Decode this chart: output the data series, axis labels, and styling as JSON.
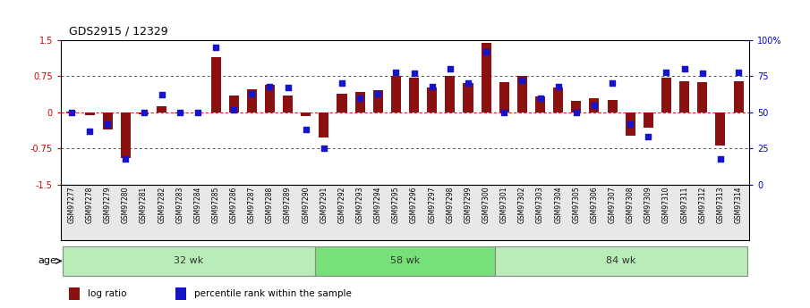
{
  "title": "GDS2915 / 12329",
  "samples": [
    "GSM97277",
    "GSM97278",
    "GSM97279",
    "GSM97280",
    "GSM97281",
    "GSM97282",
    "GSM97283",
    "GSM97284",
    "GSM97285",
    "GSM97286",
    "GSM97287",
    "GSM97288",
    "GSM97289",
    "GSM97290",
    "GSM97291",
    "GSM97292",
    "GSM97293",
    "GSM97294",
    "GSM97295",
    "GSM97296",
    "GSM97297",
    "GSM97298",
    "GSM97299",
    "GSM97300",
    "GSM97301",
    "GSM97302",
    "GSM97303",
    "GSM97304",
    "GSM97305",
    "GSM97306",
    "GSM97307",
    "GSM97308",
    "GSM97309",
    "GSM97310",
    "GSM97311",
    "GSM97312",
    "GSM97313",
    "GSM97314"
  ],
  "log_ratio": [
    0.02,
    -0.05,
    -0.35,
    -0.95,
    -0.04,
    0.13,
    -0.02,
    0.0,
    1.15,
    0.35,
    0.48,
    0.58,
    0.35,
    -0.08,
    -0.52,
    0.38,
    0.42,
    0.47,
    0.75,
    0.72,
    0.52,
    0.76,
    0.6,
    1.45,
    0.62,
    0.76,
    0.34,
    0.52,
    0.23,
    0.3,
    0.25,
    -0.48,
    -0.32,
    0.72,
    0.65,
    0.62,
    -0.68,
    0.65
  ],
  "percentile_rank": [
    50,
    37,
    42,
    18,
    50,
    62,
    50,
    50,
    95,
    52,
    63,
    68,
    67,
    38,
    25,
    70,
    60,
    63,
    78,
    77,
    68,
    80,
    70,
    92,
    50,
    72,
    60,
    68,
    50,
    55,
    70,
    42,
    33,
    78,
    80,
    77,
    18,
    78
  ],
  "groups": [
    {
      "label": "32 wk",
      "start": 0,
      "end": 14,
      "color": "#b8edb8"
    },
    {
      "label": "58 wk",
      "start": 14,
      "end": 24,
      "color": "#78e078"
    },
    {
      "label": "84 wk",
      "start": 24,
      "end": 38,
      "color": "#b8edb8"
    }
  ],
  "ylim": [
    -1.5,
    1.5
  ],
  "bar_color": "#8B1010",
  "dot_color": "#1414CC",
  "hline_color": "#DD2222",
  "dotted_line_color": "#555555",
  "yticks_left": [
    -1.5,
    -0.75,
    0.0,
    0.75,
    1.5
  ],
  "yticks_right": [
    0,
    25,
    50,
    75,
    100
  ],
  "legend_log_ratio": "log ratio",
  "legend_percentile": "percentile rank within the sample"
}
